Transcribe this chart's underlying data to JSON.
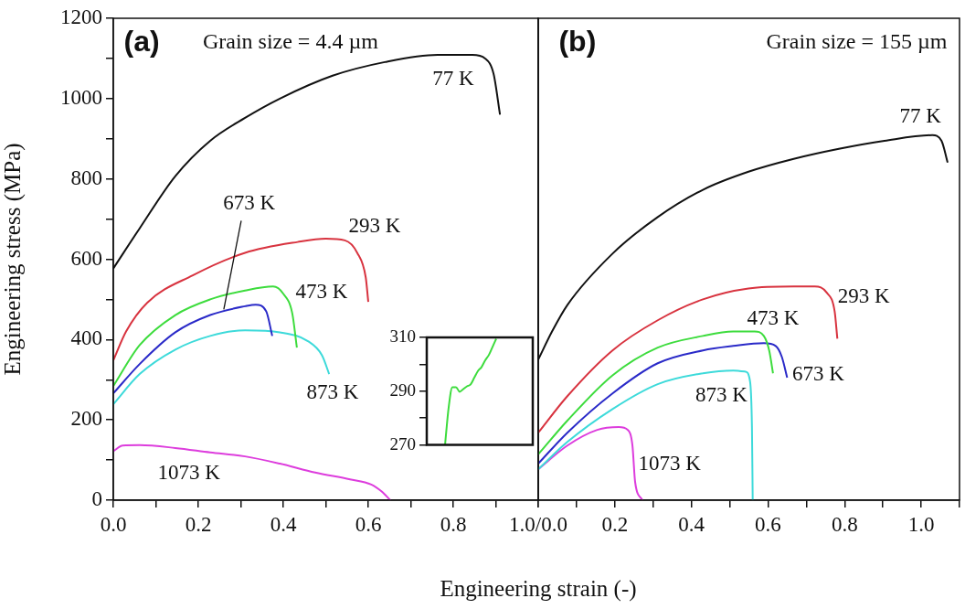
{
  "chart_data": [
    {
      "type": "line",
      "xlabel": "Engineering strain (-)",
      "ylabel": "Engineering stress (MPa)",
      "annotations": [
        "(a)",
        "Grain size = 4.4 µm"
      ],
      "xlim": [
        0,
        1
      ],
      "xticks": [
        {
          "value": 0,
          "label": "0.0"
        },
        {
          "value": 0.1,
          "label": null
        },
        {
          "value": 0.2,
          "label": "0.2"
        },
        {
          "value": 0.3,
          "label": null
        },
        {
          "value": 0.4,
          "label": "0.4"
        },
        {
          "value": 0.5,
          "label": null
        },
        {
          "value": 0.6,
          "label": "0.6"
        },
        {
          "value": 0.7,
          "label": null
        },
        {
          "value": 0.8,
          "label": "0.8"
        },
        {
          "value": 0.9,
          "label": null
        },
        {
          "value": 1.0,
          "label": "1.0/0.0"
        }
      ],
      "ylim": [
        0,
        1200
      ],
      "yticks": [
        0,
        {
          "value": 100,
          "label": null
        },
        200,
        {
          "value": 300,
          "label": null
        },
        400,
        {
          "value": 500,
          "label": null
        },
        600,
        {
          "value": 700,
          "label": null
        },
        800,
        {
          "value": 900,
          "label": null
        },
        1000,
        {
          "value": 1100,
          "label": null
        },
        1200
      ],
      "series": [
        {
          "name": "77 K",
          "color": "#111111",
          "x": [
            0,
            0.062,
            0.146,
            0.228,
            0.31,
            0.392,
            0.516,
            0.639,
            0.763,
            0.845,
            0.875,
            0.895,
            0.91
          ],
          "values": [
            577,
            677,
            807,
            895,
            952,
            1000,
            1057,
            1091,
            1109,
            1109,
            1100,
            1061,
            960
          ]
        },
        {
          "name": "293 K",
          "color": "#d8333f",
          "x": [
            0,
            0.03,
            0.08,
            0.187,
            0.31,
            0.434,
            0.5,
            0.545,
            0.574,
            0.594,
            0.6
          ],
          "values": [
            348,
            420,
            492,
            560,
            616,
            643,
            651,
            647,
            616,
            555,
            494
          ]
        },
        {
          "name": "473 K",
          "color": "#3ddc3d",
          "x": [
            0,
            0.062,
            0.146,
            0.228,
            0.31,
            0.376,
            0.4,
            0.421,
            0.432
          ],
          "values": [
            284,
            386,
            461,
            500,
            522,
            532,
            514,
            466,
            380
          ]
        },
        {
          "name": "673 K",
          "color": "#2a2ac8",
          "x": [
            0,
            0.062,
            0.146,
            0.228,
            0.31,
            0.335,
            0.36,
            0.374
          ],
          "values": [
            266,
            339,
            418,
            461,
            483,
            487,
            470,
            409
          ]
        },
        {
          "name": "873 K",
          "color": "#3ddada",
          "x": [
            0,
            0.062,
            0.146,
            0.228,
            0.31,
            0.392,
            0.458,
            0.491,
            0.508
          ],
          "values": [
            239,
            314,
            375,
            409,
            423,
            418,
            396,
            361,
            314
          ]
        },
        {
          "name": "1073 K",
          "color": "#dd3ddd",
          "x": [
            0,
            0.022,
            0.062,
            0.146,
            0.228,
            0.31,
            0.392,
            0.475,
            0.557,
            0.607,
            0.631,
            0.652
          ],
          "values": [
            122,
            136,
            137,
            130,
            119,
            109,
            91,
            69,
            52,
            39,
            22,
            0
          ]
        }
      ]
    },
    {
      "type": "line",
      "tick_labels": "y",
      "categories": [
        null,
        null,
        null,
        null,
        null,
        null,
        null,
        null,
        null,
        null,
        null,
        null,
        null,
        null,
        null,
        null,
        null,
        null,
        null,
        null,
        null,
        null,
        null,
        null,
        null,
        null,
        null,
        null,
        null,
        null
      ],
      "ylim": [
        270,
        310
      ],
      "yticks": [
        270,
        {
          "value": 280,
          "label": null
        },
        290,
        {
          "value": 300,
          "label": null
        },
        310
      ],
      "series": [
        {
          "color": "#3ddc3d",
          "values": [
            null,
            null,
            null,
            null,
            null,
            270,
            284,
            291.5,
            291.5,
            289.8,
            290.8,
            291.8,
            292.5,
            295,
            297.5,
            299,
            301.5,
            303.5,
            306.5,
            309.5,
            null,
            null,
            null,
            null,
            null,
            null,
            null,
            null,
            null,
            null
          ]
        }
      ]
    },
    {
      "type": "line",
      "tick_labels": "x",
      "annotations": [
        "(b)",
        "Grain size = 155 µm"
      ],
      "xlim": [
        0,
        1.1
      ],
      "xticks": [
        {
          "value": 0,
          "label": null
        },
        {
          "value": 0.1,
          "label": null
        },
        {
          "value": 0.2,
          "label": "0.2"
        },
        {
          "value": 0.3,
          "label": null
        },
        {
          "value": 0.4,
          "label": "0.4"
        },
        {
          "value": 0.5,
          "label": null
        },
        {
          "value": 0.6,
          "label": "0.6"
        },
        {
          "value": 0.7,
          "label": null
        },
        {
          "value": 0.8,
          "label": "0.8"
        },
        {
          "value": 0.9,
          "label": null
        },
        {
          "value": 1.0,
          "label": "1.0"
        },
        {
          "value": 1.1,
          "label": null
        }
      ],
      "ylim": [
        0,
        1200
      ],
      "series": [
        {
          "name": "77 K",
          "color": "#111111",
          "x": [
            0,
            0.036,
            0.076,
            0.194,
            0.312,
            0.43,
            0.549,
            0.667,
            0.785,
            0.904,
            1.029,
            1.053,
            1.069
          ],
          "values": [
            350,
            420,
            486,
            614,
            705,
            773,
            818,
            850,
            875,
            895,
            909,
            895,
            841
          ]
        },
        {
          "name": "293 K",
          "color": "#d8333f",
          "x": [
            0,
            0.076,
            0.194,
            0.312,
            0.43,
            0.549,
            0.667,
            0.722,
            0.754,
            0.774,
            0.781
          ],
          "values": [
            168,
            259,
            373,
            448,
            500,
            527,
            532,
            532,
            516,
            470,
            402
          ]
        },
        {
          "name": "473 K",
          "color": "#3ddc3d",
          "x": [
            0,
            0.076,
            0.194,
            0.312,
            0.43,
            0.509,
            0.565,
            0.589,
            0.603,
            0.613
          ],
          "values": [
            114,
            198,
            311,
            380,
            409,
            420,
            420,
            409,
            373,
            316
          ]
        },
        {
          "name": "673 K",
          "color": "#2a2ac8",
          "x": [
            0,
            0.076,
            0.194,
            0.312,
            0.43,
            0.509,
            0.589,
            0.62,
            0.636,
            0.65
          ],
          "values": [
            91,
            168,
            266,
            341,
            373,
            384,
            391,
            384,
            357,
            305
          ]
        },
        {
          "name": "873 K",
          "color": "#3ddada",
          "x": [
            0,
            0.076,
            0.194,
            0.312,
            0.43,
            0.509,
            0.541,
            0.553,
            0.558,
            0.56
          ],
          "values": [
            77,
            145,
            227,
            289,
            316,
            323,
            320,
            296,
            182,
            0
          ]
        },
        {
          "name": "1073 K",
          "color": "#dd3ddd",
          "x": [
            0,
            0.076,
            0.154,
            0.21,
            0.234,
            0.246,
            0.253,
            0.272
          ],
          "values": [
            77,
            136,
            175,
            182,
            175,
            136,
            45,
            0
          ]
        }
      ]
    }
  ]
}
